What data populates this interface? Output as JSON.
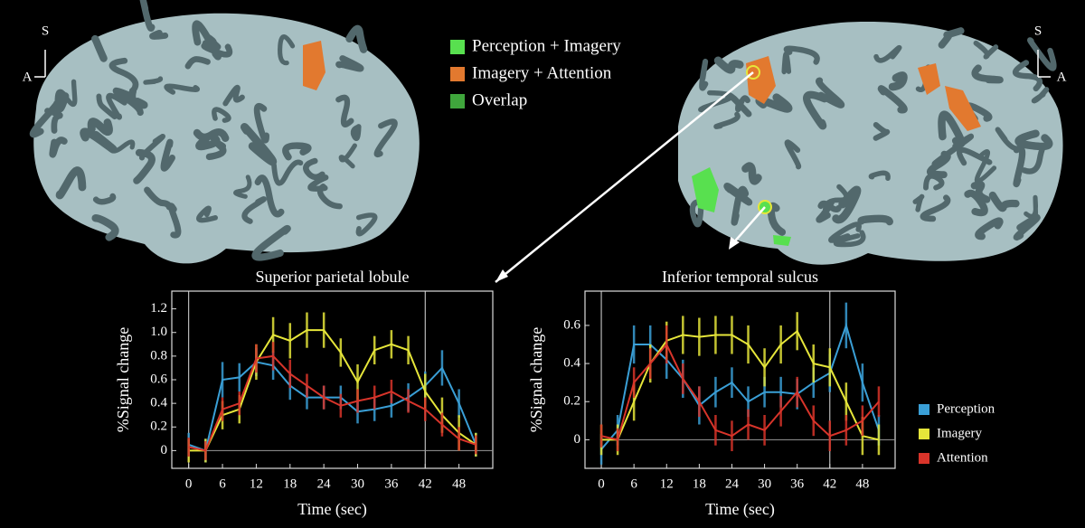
{
  "figure_legend": {
    "items": [
      {
        "name": "Perception + Imagery",
        "color": "#58e04f"
      },
      {
        "name": "Imagery + Attention",
        "color": "#e2792f"
      },
      {
        "name": "Overlap",
        "color": "#3fa63c"
      }
    ]
  },
  "orientation": {
    "left": {
      "up": "S",
      "side": "A"
    },
    "right": {
      "up": "S",
      "side": "A"
    }
  },
  "chart_data": [
    {
      "type": "line",
      "title": "Superior parietal lobule",
      "x_label": "Time (sec)",
      "y_label": "%Signal change",
      "x": [
        0,
        3,
        6,
        9,
        12,
        15,
        18,
        21,
        24,
        27,
        30,
        33,
        36,
        39,
        42,
        45,
        48,
        51
      ],
      "xlim": [
        -3,
        54
      ],
      "xticks": [
        0,
        6,
        12,
        18,
        24,
        30,
        36,
        42,
        48
      ],
      "ylim": [
        -0.15,
        1.35
      ],
      "yticks": [
        0,
        0.2,
        0.4,
        0.6,
        0.8,
        {
          "value": 1,
          "label": "1.0"
        },
        1.2
      ],
      "vlines": [
        0,
        42
      ],
      "series": [
        {
          "name": "Perception",
          "color": "#3a9fd6",
          "values": [
            0.05,
            0.0,
            0.6,
            0.62,
            0.75,
            0.72,
            0.55,
            0.45,
            0.45,
            0.45,
            0.33,
            0.35,
            0.38,
            0.45,
            0.55,
            0.7,
            0.4,
            0.05
          ],
          "errors": [
            0.1,
            0.1,
            0.15,
            0.12,
            0.12,
            0.12,
            0.12,
            0.1,
            0.1,
            0.1,
            0.1,
            0.1,
            0.1,
            0.12,
            0.12,
            0.15,
            0.12,
            0.1
          ]
        },
        {
          "name": "Imagery",
          "color": "#e6e63a",
          "values": [
            0.0,
            0.0,
            0.3,
            0.35,
            0.75,
            0.98,
            0.93,
            1.02,
            1.02,
            0.83,
            0.58,
            0.85,
            0.9,
            0.85,
            0.5,
            0.3,
            0.15,
            0.05
          ],
          "errors": [
            0.1,
            0.1,
            0.12,
            0.12,
            0.15,
            0.15,
            0.15,
            0.15,
            0.15,
            0.12,
            0.15,
            0.12,
            0.12,
            0.12,
            0.15,
            0.15,
            0.15,
            0.1
          ]
        },
        {
          "name": "Attention",
          "color": "#d8342a",
          "values": [
            0.03,
            0.0,
            0.35,
            0.4,
            0.78,
            0.8,
            0.65,
            0.55,
            0.45,
            0.38,
            0.42,
            0.45,
            0.5,
            0.42,
            0.35,
            0.22,
            0.1,
            0.05
          ],
          "errors": [
            0.08,
            0.08,
            0.1,
            0.1,
            0.12,
            0.12,
            0.12,
            0.1,
            0.1,
            0.1,
            0.1,
            0.1,
            0.1,
            0.1,
            0.1,
            0.1,
            0.1,
            0.08
          ]
        }
      ]
    },
    {
      "type": "line",
      "title": "Inferior temporal sulcus",
      "x_label": "Time (sec)",
      "y_label": "%Signal change",
      "x": [
        0,
        3,
        6,
        9,
        12,
        15,
        18,
        21,
        24,
        27,
        30,
        33,
        36,
        39,
        42,
        45,
        48,
        51
      ],
      "xlim": [
        -3,
        54
      ],
      "xticks": [
        0,
        6,
        12,
        18,
        24,
        30,
        36,
        42,
        48
      ],
      "ylim": [
        -0.15,
        0.78
      ],
      "yticks": [
        0,
        0.2,
        0.4,
        0.6
      ],
      "vlines": [
        0,
        42
      ],
      "series": [
        {
          "name": "Perception",
          "color": "#3a9fd6",
          "values": [
            -0.05,
            0.05,
            0.5,
            0.5,
            0.42,
            0.32,
            0.18,
            0.25,
            0.3,
            0.2,
            0.25,
            0.25,
            0.24,
            0.3,
            0.35,
            0.6,
            0.3,
            0.05
          ],
          "errors": [
            0.08,
            0.08,
            0.1,
            0.1,
            0.1,
            0.1,
            0.1,
            0.08,
            0.08,
            0.08,
            0.08,
            0.08,
            0.08,
            0.08,
            0.1,
            0.12,
            0.1,
            0.08
          ]
        },
        {
          "name": "Imagery",
          "color": "#e6e63a",
          "values": [
            0.0,
            0.0,
            0.2,
            0.4,
            0.52,
            0.55,
            0.54,
            0.55,
            0.55,
            0.5,
            0.38,
            0.5,
            0.57,
            0.4,
            0.38,
            0.2,
            0.02,
            0.0
          ],
          "errors": [
            0.08,
            0.08,
            0.1,
            0.1,
            0.1,
            0.1,
            0.1,
            0.1,
            0.1,
            0.1,
            0.1,
            0.1,
            0.1,
            0.1,
            0.1,
            0.1,
            0.1,
            0.08
          ]
        },
        {
          "name": "Attention",
          "color": "#d8342a",
          "values": [
            0.02,
            0.0,
            0.3,
            0.4,
            0.5,
            0.32,
            0.2,
            0.05,
            0.02,
            0.08,
            0.05,
            0.15,
            0.25,
            0.1,
            0.02,
            0.05,
            0.1,
            0.2
          ],
          "errors": [
            0.06,
            0.06,
            0.08,
            0.08,
            0.1,
            0.08,
            0.08,
            0.08,
            0.08,
            0.08,
            0.08,
            0.08,
            0.08,
            0.08,
            0.08,
            0.08,
            0.08,
            0.08
          ]
        }
      ]
    }
  ]
}
